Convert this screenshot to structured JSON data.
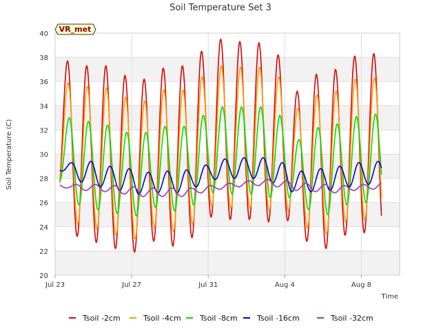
{
  "chart_data": {
    "type": "line",
    "title": "Soil Temperature Set 3",
    "xlabel": "Time",
    "ylabel": "Soil Temperature (C)",
    "site_tag": "VR_met",
    "x_start": "Jul 23",
    "x_end": "Aug 10",
    "xlim": [
      0,
      18
    ],
    "ylim": [
      20,
      40
    ],
    "y_ticks": [
      20,
      22,
      24,
      26,
      28,
      30,
      32,
      34,
      36,
      38,
      40
    ],
    "x_ticks": [
      {
        "day": 0,
        "label": "Jul 23"
      },
      {
        "day": 4,
        "label": "Jul 27"
      },
      {
        "day": 8,
        "label": "Jul 31"
      },
      {
        "day": 12,
        "label": "Aug 4"
      },
      {
        "day": 16,
        "label": "Aug 8"
      }
    ],
    "grid": true,
    "legend_position": "bottom",
    "peak_fraction_of_day": 0.65,
    "start_offset_day": 0.25,
    "end_offset_day": 17.05,
    "series": [
      {
        "name": "Tsoil -2cm",
        "color": "#dd0000",
        "phase_lag": 0.0,
        "max": [
          37.7,
          37.3,
          37.3,
          36.5,
          36.2,
          37.1,
          37.3,
          38.5,
          39.5,
          39.3,
          39.2,
          38.2,
          35.2,
          36.6,
          37.0,
          38.1,
          38.3
        ],
        "min": [
          26.6,
          23.2,
          22.7,
          22.2,
          21.9,
          22.8,
          22.4,
          23.1,
          24.8,
          24.6,
          24.6,
          24.4,
          24.5,
          22.8,
          22.2,
          23.3,
          23.5
        ]
      },
      {
        "name": "Tsoil -4cm",
        "color": "#ff9900",
        "phase_lag": 0.03,
        "max": [
          35.9,
          35.6,
          35.5,
          34.7,
          34.4,
          35.3,
          35.3,
          36.4,
          37.3,
          37.2,
          37.2,
          36.4,
          33.8,
          34.9,
          35.2,
          36.2,
          36.3
        ],
        "min": [
          27.2,
          24.2,
          23.8,
          23.3,
          23.0,
          23.9,
          23.6,
          24.2,
          25.7,
          25.5,
          25.5,
          25.3,
          25.3,
          23.9,
          23.4,
          24.4,
          24.6
        ]
      },
      {
        "name": "Tsoil -8cm",
        "color": "#00dd00",
        "phase_lag": 0.09,
        "max": [
          33.0,
          32.7,
          32.4,
          31.8,
          31.8,
          32.3,
          32.3,
          33.2,
          33.9,
          33.9,
          33.9,
          33.2,
          31.2,
          32.2,
          32.5,
          33.1,
          33.3
        ],
        "min": [
          27.8,
          25.8,
          25.4,
          25.1,
          24.9,
          25.6,
          25.3,
          25.8,
          26.8,
          26.7,
          26.7,
          26.4,
          26.4,
          25.4,
          25.0,
          25.8,
          26.0
        ]
      },
      {
        "name": "Tsoil -16cm",
        "color": "#0000cc",
        "phase_lag": 0.22,
        "max": [
          29.3,
          29.4,
          29.0,
          28.8,
          28.5,
          28.6,
          28.7,
          29.1,
          29.6,
          29.7,
          29.7,
          29.3,
          28.6,
          28.8,
          29.0,
          29.3,
          29.4
        ],
        "min": [
          28.6,
          27.7,
          27.3,
          27.0,
          26.7,
          26.8,
          26.8,
          27.3,
          27.9,
          28.0,
          28.0,
          27.6,
          26.9,
          26.9,
          27.0,
          27.3,
          27.5
        ]
      },
      {
        "name": "Tsoil -32cm",
        "color": "#9933cc",
        "phase_lag": 0.45,
        "max": [
          27.5,
          27.5,
          27.4,
          27.3,
          27.2,
          27.2,
          27.2,
          27.4,
          27.6,
          27.8,
          27.9,
          27.8,
          27.6,
          27.5,
          27.4,
          27.5,
          27.6
        ],
        "min": [
          27.2,
          27.0,
          26.9,
          26.7,
          26.5,
          26.5,
          26.5,
          26.8,
          27.1,
          27.3,
          27.4,
          27.3,
          27.0,
          26.9,
          26.8,
          27.0,
          27.1
        ]
      }
    ]
  }
}
